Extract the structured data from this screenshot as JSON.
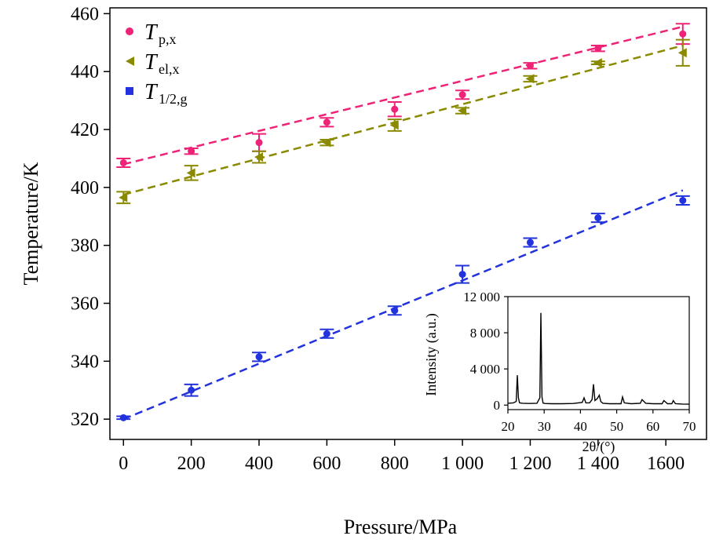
{
  "chart_data": [
    {
      "type": "scatter",
      "xlabel": "Pressure/MPa",
      "ylabel": "Temperature/K",
      "xlim": [
        -40,
        1720
      ],
      "ylim": [
        313,
        462
      ],
      "x_ticks": [
        0,
        200,
        400,
        600,
        800,
        1000,
        1200,
        1400,
        1600
      ],
      "x_tick_labels": [
        "0",
        "200",
        "400",
        "600",
        "800",
        "1 000",
        "1 200",
        "1 400",
        "1600"
      ],
      "y_ticks": [
        320,
        340,
        360,
        380,
        400,
        420,
        440,
        460
      ],
      "y_tick_labels": [
        "320",
        "340",
        "360",
        "380",
        "400",
        "420",
        "440",
        "460"
      ],
      "series": [
        {
          "name": "T",
          "sub": "p,x",
          "color": "#ee2277",
          "marker": "circle",
          "x": [
            0,
            200,
            400,
            600,
            800,
            1000,
            1200,
            1400,
            1650
          ],
          "y": [
            408.5,
            412.5,
            415.5,
            422.5,
            427.0,
            432.0,
            442.0,
            448.0,
            453.0
          ],
          "err": [
            1.5,
            1.0,
            3.0,
            1.5,
            2.5,
            1.5,
            1.0,
            1.0,
            3.5
          ],
          "fit": [
            [
              0,
              408.0
            ],
            [
              1650,
              455.5
            ]
          ]
        },
        {
          "name": "T",
          "sub": "el,x",
          "color": "#8a8a00",
          "marker": "triangle-left",
          "x": [
            0,
            200,
            400,
            600,
            800,
            1000,
            1200,
            1400,
            1650
          ],
          "y": [
            396.5,
            405.0,
            410.5,
            415.5,
            421.5,
            426.5,
            437.5,
            443.0,
            446.5
          ],
          "err": [
            2.0,
            2.5,
            2.0,
            1.0,
            2.0,
            1.0,
            1.0,
            0.5,
            4.5
          ],
          "fit": [
            [
              0,
              397.5
            ],
            [
              1650,
              449.0
            ]
          ]
        },
        {
          "name": "T",
          "sub": "1/2,g",
          "color": "#2233dd",
          "marker": "circle",
          "x": [
            0,
            200,
            400,
            600,
            800,
            1000,
            1200,
            1400,
            1650
          ],
          "y": [
            320.5,
            330.0,
            341.5,
            349.5,
            357.5,
            370.0,
            381.0,
            389.5,
            395.5
          ],
          "err": [
            0.5,
            2.0,
            1.5,
            1.5,
            1.5,
            3.0,
            1.5,
            1.5,
            1.5
          ],
          "fit": [
            [
              0,
              320.0
            ],
            [
              1650,
              399.0
            ]
          ]
        }
      ]
    },
    {
      "type": "line",
      "xlabel": "2θ/(°)",
      "ylabel": "Intensity (a.u.)",
      "xlim": [
        20,
        70
      ],
      "ylim": [
        -500,
        12000
      ],
      "x_ticks": [
        20,
        30,
        40,
        50,
        60,
        70
      ],
      "x_tick_labels": [
        "20",
        "30",
        "40",
        "50",
        "60",
        "70"
      ],
      "y_ticks": [
        0,
        4000,
        8000,
        12000
      ],
      "y_tick_labels": [
        "0",
        "4 000",
        "8 000",
        "12 000"
      ],
      "x": [
        20,
        21.5,
        22.3,
        22.6,
        22.9,
        23.2,
        24,
        26,
        28,
        28.8,
        29.1,
        29.4,
        29.7,
        30.2,
        32,
        35,
        38,
        40.5,
        41,
        41.5,
        42.5,
        43.2,
        43.6,
        44.0,
        44.6,
        45.2,
        45.6,
        46.2,
        48,
        51.2,
        51.6,
        52.1,
        54,
        56.5,
        57,
        58,
        60,
        62.5,
        63,
        64,
        65.2,
        65.6,
        66.2,
        68,
        70
      ],
      "y": [
        200,
        250,
        400,
        3300,
        800,
        250,
        200,
        180,
        200,
        800,
        10200,
        900,
        220,
        180,
        150,
        150,
        180,
        300,
        800,
        250,
        250,
        600,
        2300,
        500,
        700,
        1100,
        400,
        200,
        150,
        150,
        900,
        250,
        150,
        200,
        600,
        200,
        150,
        150,
        500,
        150,
        150,
        500,
        150,
        120,
        100
      ],
      "color": "#000000"
    }
  ]
}
